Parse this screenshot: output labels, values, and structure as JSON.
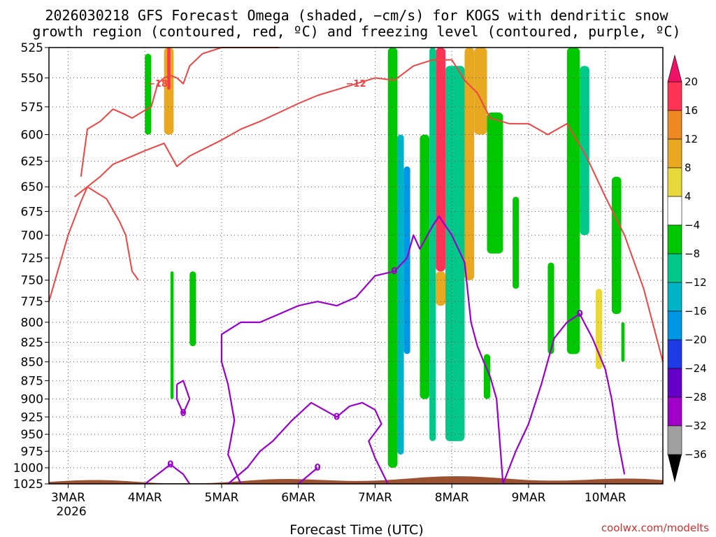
{
  "title_line1": "2026030218 GFS Forecast Omega (shaded, −cm/s) for KOGS with dendritic snow",
  "title_line2": "growth region (contoured, red, ºC) and freezing level (contoured, purple, ºC)",
  "xlabel": "Forecast Time (UTC)",
  "credit": "coolwx.com/modelts",
  "colors": {
    "dgz_contour": "#ee4444",
    "freezing_contour": "#9900cc",
    "terrain": "#9c5230",
    "grid": "#555555"
  },
  "chart_data": {
    "type": "heatmap",
    "y_axis": {
      "label": "",
      "scale": "log-pressure",
      "inverted": true,
      "range": [
        525,
        1025
      ],
      "units": "hPa",
      "ticks": [
        "525",
        "550",
        "575",
        "600",
        "625",
        "650",
        "675",
        "700",
        "725",
        "750",
        "775",
        "800",
        "825",
        "850",
        "875",
        "900",
        "925",
        "950",
        "975",
        "1000",
        "1025"
      ],
      "tick_values": [
        525,
        550,
        575,
        600,
        625,
        650,
        675,
        700,
        725,
        750,
        775,
        800,
        825,
        850,
        875,
        900,
        925,
        950,
        975,
        1000,
        1025
      ]
    },
    "x_axis": {
      "label": "Forecast Time (UTC)",
      "range": [
        "2026-03-02T18",
        "2026-03-10T18"
      ],
      "ticks": [
        {
          "label": "3MAR",
          "sub": "2026",
          "time": "2026-03-03T00"
        },
        {
          "label": "4MAR",
          "sub": "",
          "time": "2026-03-04T00"
        },
        {
          "label": "5MAR",
          "sub": "",
          "time": "2026-03-05T00"
        },
        {
          "label": "6MAR",
          "sub": "",
          "time": "2026-03-06T00"
        },
        {
          "label": "7MAR",
          "sub": "",
          "time": "2026-03-07T00"
        },
        {
          "label": "8MAR",
          "sub": "",
          "time": "2026-03-08T00"
        },
        {
          "label": "9MAR",
          "sub": "",
          "time": "2026-03-09T00"
        },
        {
          "label": "10MAR",
          "sub": "",
          "time": "2026-03-10T00"
        }
      ]
    },
    "grid": true,
    "colorbar": {
      "labels": [
        "20",
        "16",
        "12",
        "8",
        "4",
        "−4",
        "−8",
        "−12",
        "−16",
        "−20",
        "−24",
        "−28",
        "−32",
        "−36"
      ],
      "levels": [
        20,
        16,
        12,
        8,
        4,
        -4,
        -8,
        -12,
        -16,
        -20,
        -24,
        -28,
        -32,
        -36
      ],
      "bands": [
        {
          "from": 16,
          "to": 20,
          "color": "#ff3355"
        },
        {
          "from": 12,
          "to": 16,
          "color": "#ee8822"
        },
        {
          "from": 8,
          "to": 12,
          "color": "#e8a820"
        },
        {
          "from": 4,
          "to": 8,
          "color": "#e8d83a"
        },
        {
          "from": -4,
          "to": 4,
          "color": "#ffffff"
        },
        {
          "from": -8,
          "to": -4,
          "color": "#00c800"
        },
        {
          "from": -12,
          "to": -8,
          "color": "#00c888"
        },
        {
          "from": -16,
          "to": -12,
          "color": "#00b4c8"
        },
        {
          "from": -20,
          "to": -16,
          "color": "#0096e6"
        },
        {
          "from": -24,
          "to": -20,
          "color": "#1e3ce6"
        },
        {
          "from": -28,
          "to": -24,
          "color": "#6400c8"
        },
        {
          "from": -32,
          "to": -28,
          "color": "#a000c8"
        },
        {
          "from": -36,
          "to": -32,
          "color": "#a0a0a0"
        }
      ],
      "over_color": "#ee1166",
      "under_color": "#000000"
    },
    "omega_shading": [
      {
        "t0": "2026-03-02T18",
        "t1": "2026-03-03T00",
        "p0": 525,
        "p1": 640,
        "band": 4
      },
      {
        "t0": "2026-03-03T00",
        "t1": "2026-03-03T03",
        "p0": 525,
        "p1": 720,
        "band": 4
      },
      {
        "t0": "2026-03-03T04",
        "t1": "2026-03-03T07",
        "p0": 560,
        "p1": 660,
        "band": 4
      },
      {
        "t0": "2026-03-02T18",
        "t1": "2026-03-02T23",
        "p0": 920,
        "p1": 975,
        "band": 4
      },
      {
        "t0": "2026-03-03T14",
        "t1": "2026-03-03T17",
        "p0": 560,
        "p1": 740,
        "band": 4
      },
      {
        "t0": "2026-03-03T21",
        "t1": "2026-03-03T23",
        "p0": 570,
        "p1": 700,
        "band": 4
      },
      {
        "t0": "2026-03-04T00",
        "t1": "2026-03-04T02",
        "p0": 530,
        "p1": 600,
        "band": 5
      },
      {
        "t0": "2026-03-04T00",
        "t1": "2026-03-04T02",
        "p0": 620,
        "p1": 740,
        "band": 4
      },
      {
        "t0": "2026-03-04T04",
        "t1": "2026-03-04T10",
        "p0": 525,
        "p1": 660,
        "band": 4
      },
      {
        "t0": "2026-03-04T06",
        "t1": "2026-03-04T09",
        "p0": 525,
        "p1": 600,
        "band": 2
      },
      {
        "t0": "2026-03-04T07",
        "t1": "2026-03-04T08",
        "p0": 525,
        "p1": 560,
        "band": 0
      },
      {
        "t0": "2026-03-04T10",
        "t1": "2026-03-04T14",
        "p0": 700,
        "p1": 800,
        "band": 4
      },
      {
        "t0": "2026-03-04T08",
        "t1": "2026-03-04T09",
        "p0": 740,
        "p1": 900,
        "band": 5
      },
      {
        "t0": "2026-03-04T14",
        "t1": "2026-03-04T16",
        "p0": 740,
        "p1": 830,
        "band": 5
      },
      {
        "t0": "2026-03-06T14",
        "t1": "2026-03-06T16",
        "p0": 525,
        "p1": 790,
        "band": 4
      },
      {
        "t0": "2026-03-06T17",
        "t1": "2026-03-06T18",
        "p0": 600,
        "p1": 640,
        "band": 4
      },
      {
        "t0": "2026-03-07T04",
        "t1": "2026-03-07T07",
        "p0": 525,
        "p1": 1000,
        "band": 5
      },
      {
        "t0": "2026-03-07T07",
        "t1": "2026-03-07T09",
        "p0": 600,
        "p1": 980,
        "band": 7
      },
      {
        "t0": "2026-03-07T09",
        "t1": "2026-03-07T11",
        "p0": 630,
        "p1": 840,
        "band": 8
      },
      {
        "t0": "2026-03-07T11",
        "t1": "2026-03-07T14",
        "p0": 525,
        "p1": 900,
        "band": 4
      },
      {
        "t0": "2026-03-07T14",
        "t1": "2026-03-07T17",
        "p0": 600,
        "p1": 900,
        "band": 5
      },
      {
        "t0": "2026-03-07T17",
        "t1": "2026-03-07T19",
        "p0": 525,
        "p1": 960,
        "band": 6
      },
      {
        "t0": "2026-03-07T19",
        "t1": "2026-03-07T22",
        "p0": 525,
        "p1": 740,
        "band": 0
      },
      {
        "t0": "2026-03-07T19",
        "t1": "2026-03-07T22",
        "p0": 740,
        "p1": 780,
        "band": 2
      },
      {
        "t0": "2026-03-07T22",
        "t1": "2026-03-08T04",
        "p0": 540,
        "p1": 960,
        "band": 6
      },
      {
        "t0": "2026-03-08T04",
        "t1": "2026-03-08T07",
        "p0": 525,
        "p1": 750,
        "band": 2
      },
      {
        "t0": "2026-03-08T07",
        "t1": "2026-03-08T11",
        "p0": 525,
        "p1": 600,
        "band": 2
      },
      {
        "t0": "2026-03-08T11",
        "t1": "2026-03-08T16",
        "p0": 580,
        "p1": 720,
        "band": 5
      },
      {
        "t0": "2026-03-08T10",
        "t1": "2026-03-08T12",
        "p0": 840,
        "p1": 900,
        "band": 5
      },
      {
        "t0": "2026-03-08T19",
        "t1": "2026-03-08T21",
        "p0": 660,
        "p1": 760,
        "band": 5
      },
      {
        "t0": "2026-03-08T16",
        "t1": "2026-03-08T17",
        "p0": 790,
        "p1": 890,
        "band": 4
      },
      {
        "t0": "2026-03-09T03",
        "t1": "2026-03-09T06",
        "p0": 530,
        "p1": 720,
        "band": 4
      },
      {
        "t0": "2026-03-09T06",
        "t1": "2026-03-09T08",
        "p0": 730,
        "p1": 840,
        "band": 5
      },
      {
        "t0": "2026-03-09T12",
        "t1": "2026-03-09T16",
        "p0": 525,
        "p1": 840,
        "band": 5
      },
      {
        "t0": "2026-03-09T16",
        "t1": "2026-03-09T19",
        "p0": 540,
        "p1": 700,
        "band": 6
      },
      {
        "t0": "2026-03-09T19",
        "t1": "2026-03-09T21",
        "p0": 620,
        "p1": 700,
        "band": 4
      },
      {
        "t0": "2026-03-09T21",
        "t1": "2026-03-09T23",
        "p0": 760,
        "p1": 860,
        "band": 3
      },
      {
        "t0": "2026-03-10T02",
        "t1": "2026-03-10T05",
        "p0": 640,
        "p1": 790,
        "band": 5
      },
      {
        "t0": "2026-03-10T02",
        "t1": "2026-03-10T04",
        "p0": 930,
        "p1": 960,
        "band": 4
      },
      {
        "t0": "2026-03-10T05",
        "t1": "2026-03-10T06",
        "p0": 800,
        "p1": 850,
        "band": 5
      },
      {
        "t0": "2026-03-09T16",
        "t1": "2026-03-09T17",
        "p0": 870,
        "p1": 920,
        "band": 4
      }
    ],
    "dgz_contours": [
      {
        "label": "−18",
        "points": [
          [
            "2026-03-03T04",
            640
          ],
          [
            "2026-03-03T06",
            595
          ],
          [
            "2026-03-03T10",
            588
          ],
          [
            "2026-03-03T14",
            577
          ],
          [
            "2026-03-03T18",
            582
          ],
          [
            "2026-03-03T20",
            585
          ],
          [
            "2026-03-04T00",
            578
          ],
          [
            "2026-03-04T02",
            575
          ],
          [
            "2026-03-04T04",
            555
          ],
          [
            "2026-03-04T06",
            550
          ],
          [
            "2026-03-04T08",
            548
          ],
          [
            "2026-03-04T10",
            550
          ],
          [
            "2026-03-04T12",
            555
          ],
          [
            "2026-03-04T14",
            540
          ],
          [
            "2026-03-04T18",
            530
          ],
          [
            "2026-03-05T00",
            525
          ],
          [
            "2026-03-05T18",
            525
          ]
        ]
      },
      {
        "label": "−12",
        "points": [
          [
            "2026-03-02T18",
            775
          ],
          [
            "2026-03-03T00",
            700
          ],
          [
            "2026-03-03T04",
            665
          ],
          [
            "2026-03-03T06",
            650
          ],
          [
            "2026-03-03T10",
            640
          ],
          [
            "2026-03-03T14",
            628
          ],
          [
            "2026-03-04T00",
            615
          ],
          [
            "2026-03-04T06",
            608
          ],
          [
            "2026-03-04T10",
            630
          ],
          [
            "2026-03-04T14",
            620
          ],
          [
            "2026-03-05T00",
            605
          ],
          [
            "2026-03-05T06",
            595
          ],
          [
            "2026-03-05T12",
            588
          ],
          [
            "2026-03-05T18",
            580
          ],
          [
            "2026-03-06T00",
            572
          ],
          [
            "2026-03-06T06",
            565
          ],
          [
            "2026-03-06T12",
            560
          ],
          [
            "2026-03-06T18",
            555
          ],
          [
            "2026-03-07T00",
            550
          ],
          [
            "2026-03-07T06",
            552
          ],
          [
            "2026-03-07T12",
            540
          ],
          [
            "2026-03-07T18",
            535
          ],
          [
            "2026-03-08T00",
            535
          ],
          [
            "2026-03-08T04",
            552
          ],
          [
            "2026-03-08T08",
            563
          ],
          [
            "2026-03-08T12",
            585
          ],
          [
            "2026-03-08T18",
            590
          ],
          [
            "2026-03-09T00",
            590
          ],
          [
            "2026-03-09T06",
            600
          ],
          [
            "2026-03-09T12",
            590
          ],
          [
            "2026-03-09T18",
            620
          ],
          [
            "2026-03-10T00",
            660
          ],
          [
            "2026-03-10T06",
            700
          ],
          [
            "2026-03-10T12",
            760
          ],
          [
            "2026-03-10T18",
            850
          ]
        ]
      },
      {
        "label": "",
        "points": [
          [
            "2026-03-03T02",
            660
          ],
          [
            "2026-03-03T06",
            650
          ],
          [
            "2026-03-03T12",
            662
          ],
          [
            "2026-03-03T16",
            685
          ],
          [
            "2026-03-03T18",
            700
          ],
          [
            "2026-03-03T20",
            740
          ],
          [
            "2026-03-03T22",
            750
          ]
        ]
      }
    ],
    "freezing_contours": [
      {
        "label": "0",
        "points": [
          [
            "2026-03-04T00",
            1025
          ],
          [
            "2026-03-04T04",
            1010
          ],
          [
            "2026-03-04T08",
            995
          ],
          [
            "2026-03-04T12",
            1010
          ],
          [
            "2026-03-04T14",
            1025
          ]
        ]
      },
      {
        "label": "0",
        "points": [
          [
            "2026-03-04T10",
            880
          ],
          [
            "2026-03-04T12",
            875
          ],
          [
            "2026-03-04T14",
            900
          ],
          [
            "2026-03-04T12",
            920
          ],
          [
            "2026-03-04T10",
            900
          ],
          [
            "2026-03-04T10",
            880
          ]
        ]
      },
      {
        "label": "0",
        "points": [
          [
            "2026-03-05T02",
            1025
          ],
          [
            "2026-03-05T08",
            1000
          ],
          [
            "2026-03-05T12",
            975
          ],
          [
            "2026-03-05T16",
            960
          ],
          [
            "2026-03-05T22",
            930
          ],
          [
            "2026-03-06T04",
            905
          ],
          [
            "2026-03-06T08",
            915
          ],
          [
            "2026-03-06T12",
            925
          ],
          [
            "2026-03-06T16",
            910
          ],
          [
            "2026-03-06T20",
            905
          ],
          [
            "2026-03-07T00",
            915
          ],
          [
            "2026-03-07T02",
            935
          ],
          [
            "2026-03-06T22",
            960
          ],
          [
            "2026-03-07T00",
            985
          ],
          [
            "2026-03-07T04",
            1025
          ]
        ]
      },
      {
        "label": "0",
        "points": [
          [
            "2026-03-06T00",
            1025
          ],
          [
            "2026-03-06T06",
            1000
          ]
        ]
      },
      {
        "label": "0",
        "points": [
          [
            "2026-03-05T06",
            1025
          ],
          [
            "2026-03-05T02",
            980
          ],
          [
            "2026-03-05T04",
            930
          ],
          [
            "2026-03-05T02",
            880
          ],
          [
            "2026-03-05T00",
            850
          ],
          [
            "2026-03-05T00",
            815
          ],
          [
            "2026-03-05T06",
            800
          ],
          [
            "2026-03-05T12",
            800
          ],
          [
            "2026-03-05T18",
            790
          ],
          [
            "2026-03-06T00",
            780
          ],
          [
            "2026-03-06T06",
            775
          ],
          [
            "2026-03-06T12",
            780
          ],
          [
            "2026-03-06T18",
            770
          ],
          [
            "2026-03-07T00",
            745
          ],
          [
            "2026-03-07T06",
            740
          ],
          [
            "2026-03-07T10",
            725
          ],
          [
            "2026-03-07T12",
            700
          ],
          [
            "2026-03-07T14",
            715
          ],
          [
            "2026-03-07T18",
            690
          ],
          [
            "2026-03-07T20",
            680
          ],
          [
            "2026-03-08T00",
            700
          ],
          [
            "2026-03-08T04",
            730
          ],
          [
            "2026-03-08T06",
            800
          ],
          [
            "2026-03-08T08",
            830
          ],
          [
            "2026-03-08T10",
            850
          ],
          [
            "2026-03-08T12",
            870
          ],
          [
            "2026-03-08T14",
            900
          ],
          [
            "2026-03-08T16",
            1025
          ]
        ]
      },
      {
        "label": "0",
        "points": [
          [
            "2026-03-08T16",
            1025
          ],
          [
            "2026-03-08T20",
            975
          ],
          [
            "2026-03-09T00",
            935
          ],
          [
            "2026-03-09T04",
            880
          ],
          [
            "2026-03-09T08",
            820
          ],
          [
            "2026-03-09T12",
            800
          ],
          [
            "2026-03-09T16",
            790
          ],
          [
            "2026-03-09T20",
            820
          ],
          [
            "2026-03-10T00",
            860
          ],
          [
            "2026-03-10T02",
            900
          ],
          [
            "2026-03-10T04",
            960
          ],
          [
            "2026-03-10T06",
            1010
          ]
        ]
      }
    ]
  }
}
